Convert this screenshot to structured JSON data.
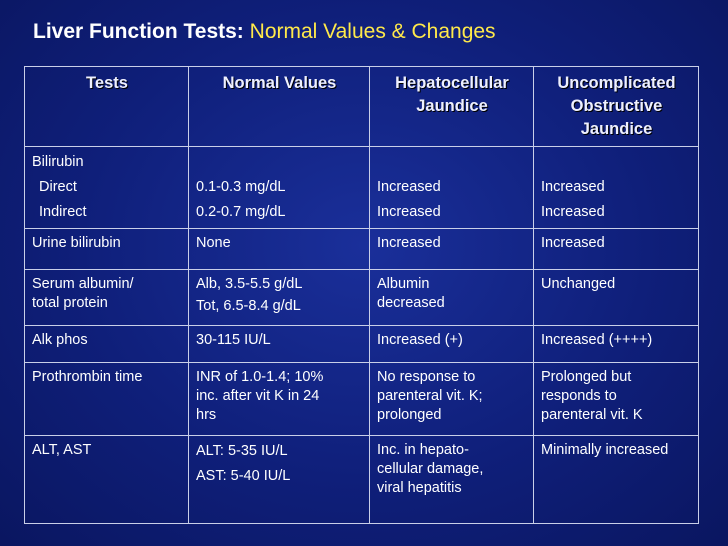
{
  "title": {
    "bold": "Liver Function Tests:",
    "subtitle": "Normal Values & Changes"
  },
  "table": {
    "headers": {
      "tests": "Tests",
      "normal": "Normal Values",
      "hepato": [
        "Hepatocellular",
        "Jaundice"
      ],
      "obstructive": [
        "Uncomplicated",
        "Obstructive",
        "Jaundice"
      ]
    },
    "bilirubin": {
      "label": "Bilirubin",
      "direct_label": "Direct",
      "indirect_label": "Indirect",
      "direct_normal": "0.1-0.3 mg/dL",
      "indirect_normal": "0.2-0.7 mg/dL",
      "direct_hepato": "Increased",
      "indirect_hepato": "Increased",
      "direct_obstructive": "Increased",
      "indirect_obstructive": "Increased"
    },
    "urine_bilirubin": {
      "test": "Urine bilirubin",
      "normal": "None",
      "hepato": "Increased",
      "obstructive": "Increased"
    },
    "serum_albumin": {
      "test": [
        "Serum albumin/",
        "total protein"
      ],
      "normal": [
        "Alb, 3.5-5.5 g/dL",
        "Tot, 6.5-8.4 g/dL"
      ],
      "hepato": [
        "Albumin",
        "decreased"
      ],
      "obstructive": "Unchanged"
    },
    "alk_phos": {
      "test": "Alk phos",
      "normal": "30-115 IU/L",
      "hepato": "Increased (+)",
      "obstructive": "Increased (++++)"
    },
    "prothrombin": {
      "test": "Prothrombin time",
      "normal": [
        "INR of 1.0-1.4; 10%",
        "inc. after vit K in 24",
        "hrs"
      ],
      "hepato": [
        "No response to",
        "parenteral vit. K;",
        "prolonged"
      ],
      "obstructive": [
        "Prolonged but",
        "responds to",
        "parenteral vit. K"
      ]
    },
    "alt_ast": {
      "test": "ALT, AST",
      "normal": [
        "ALT: 5-35 IU/L",
        "AST: 5-40 IU/L"
      ],
      "hepato": [
        "Inc. in hepato-",
        "cellular damage,",
        "viral hepatitis"
      ],
      "obstructive": "Minimally increased"
    }
  }
}
